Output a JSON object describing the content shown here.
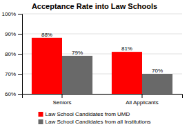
{
  "chart_data": {
    "type": "bar",
    "title": "Acceptance Rate into Law Schools",
    "categories": [
      "Seniors",
      "All Applicants"
    ],
    "series": [
      {
        "name": "Law School Candidates from UMD",
        "color": "#FF0000",
        "values": [
          88,
          81
        ],
        "value_labels": [
          "88%",
          "81%"
        ]
      },
      {
        "name": "Law School Candidates from all Institutions",
        "color": "#696969",
        "values": [
          79,
          70
        ],
        "value_labels": [
          "79%",
          "70%"
        ]
      }
    ],
    "ylim": [
      60,
      100
    ],
    "yticks": [
      {
        "value": 60,
        "label": "60%"
      },
      {
        "value": 70,
        "label": "70%"
      },
      {
        "value": 80,
        "label": "80%"
      },
      {
        "value": 90,
        "label": "90%"
      },
      {
        "value": 100,
        "label": "100%"
      }
    ],
    "grid": true,
    "data_labels": true,
    "legend": "bottom"
  }
}
